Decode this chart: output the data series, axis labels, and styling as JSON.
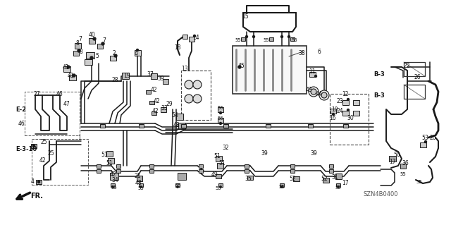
{
  "bg_color": "#ffffff",
  "line_color": "#1a1a1a",
  "diagram_code": "SZN4B0400",
  "fig_width": 6.4,
  "fig_height": 3.19,
  "dpi": 100,
  "gray": "#555555",
  "lgray": "#999999",
  "vlgray": "#cccccc"
}
